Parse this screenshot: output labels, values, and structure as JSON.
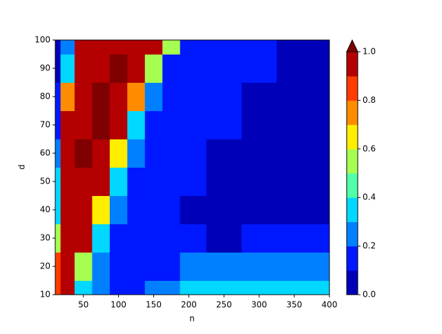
{
  "chart_data": {
    "type": "contour",
    "x_label": "n",
    "y_label": "d",
    "x": [
      10,
      25,
      50,
      75,
      100,
      125,
      150,
      175,
      200,
      250,
      300,
      350,
      400
    ],
    "y": [
      10,
      20,
      30,
      40,
      50,
      60,
      70,
      80,
      90,
      100
    ],
    "z": [
      [
        0.8,
        0.9,
        0.3,
        0.2,
        0.15,
        0.15,
        0.2,
        0.25,
        0.3,
        0.3,
        0.3,
        0.3,
        0.35
      ],
      [
        0.8,
        0.95,
        0.5,
        0.25,
        0.15,
        0.1,
        0.15,
        0.15,
        0.2,
        0.2,
        0.2,
        0.2,
        0.2
      ],
      [
        0.5,
        0.95,
        0.9,
        0.3,
        0.15,
        0.15,
        0.15,
        0.15,
        0.1,
        0.05,
        0.1,
        0.1,
        0.1
      ],
      [
        0.35,
        0.95,
        0.95,
        0.6,
        0.2,
        0.15,
        0.15,
        0.15,
        0.05,
        0.05,
        0.05,
        0.05,
        0.05
      ],
      [
        0.3,
        0.95,
        0.95,
        0.9,
        0.3,
        0.15,
        0.15,
        0.15,
        0.1,
        0.05,
        0.05,
        0.05,
        0.05
      ],
      [
        0.2,
        0.9,
        1.0,
        0.95,
        0.6,
        0.2,
        0.15,
        0.15,
        0.15,
        0.05,
        0.05,
        0.05,
        0.05
      ],
      [
        0.15,
        0.9,
        0.95,
        1.0,
        0.9,
        0.35,
        0.15,
        0.15,
        0.15,
        0.1,
        0.05,
        0.05,
        0.05
      ],
      [
        0.1,
        0.7,
        0.95,
        1.0,
        0.95,
        0.7,
        0.2,
        0.15,
        0.15,
        0.1,
        0.05,
        0.05,
        0.05
      ],
      [
        0.05,
        0.3,
        0.95,
        0.95,
        1.0,
        0.95,
        0.5,
        0.15,
        0.15,
        0.15,
        0.1,
        0.05,
        0.05
      ],
      [
        0.05,
        0.2,
        0.95,
        0.95,
        0.95,
        0.95,
        0.9,
        0.5,
        0.15,
        0.15,
        0.1,
        0.05,
        0.05
      ]
    ],
    "levels": [
      0,
      0.1,
      0.2,
      0.3,
      0.4,
      0.5,
      0.6,
      0.7,
      0.8,
      0.9,
      1.0
    ],
    "colors": [
      "#0000b8",
      "#0018ff",
      "#0080ff",
      "#00d8ff",
      "#50ffa8",
      "#a6ff50",
      "#ffee00",
      "#ff8c00",
      "#ff3b00",
      "#b40000"
    ],
    "extend_color": "#7f0000",
    "xlim": [
      10,
      400
    ],
    "ylim": [
      10,
      100
    ],
    "xticks": [
      50,
      100,
      150,
      200,
      250,
      300,
      350,
      400
    ],
    "yticks": [
      10,
      20,
      30,
      40,
      50,
      60,
      70,
      80,
      90,
      100
    ],
    "colorbar_ticks": [
      {
        "value": 0,
        "label": "0.0"
      },
      {
        "value": 0.2,
        "label": "0.2"
      },
      {
        "value": 0.4,
        "label": "0.4"
      },
      {
        "value": 0.6,
        "label": "0.6"
      },
      {
        "value": 0.8,
        "label": "0.8"
      },
      {
        "value": 1.0,
        "label": "1.0"
      }
    ]
  }
}
